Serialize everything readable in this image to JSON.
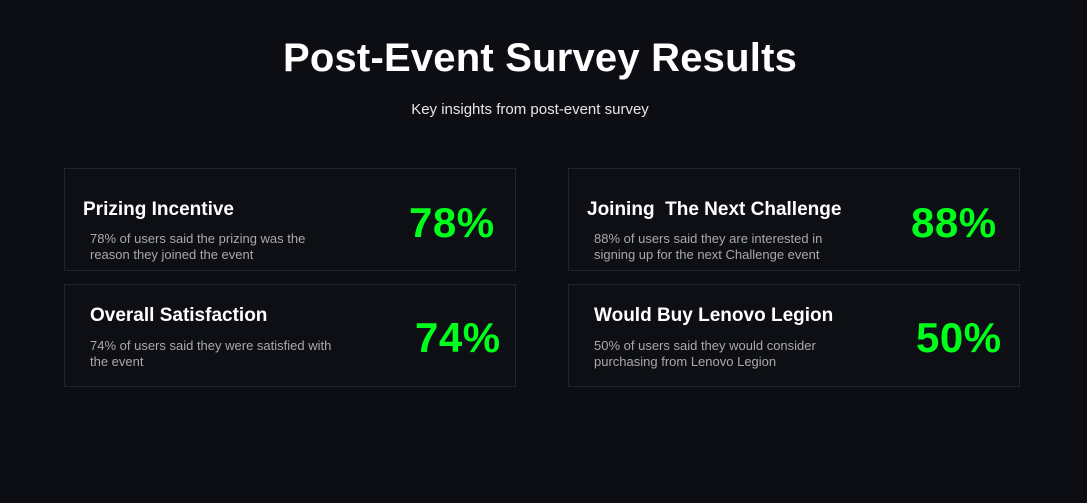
{
  "header": {
    "title": "Post-Event Survey Results",
    "subtitle": "Key insights from post-event survey"
  },
  "accent_color": "#00ff1a",
  "cards": [
    {
      "title": "Prizing Incentive",
      "description": "78% of users said the prizing was the reason they joined the event",
      "percent": "78%"
    },
    {
      "title": "Joining  The Next Challenge",
      "description": "88% of users said they are interested in signing up for the next Challenge event",
      "percent": "88%"
    },
    {
      "title": "Overall Satisfaction",
      "description": "74% of users said they were satisfied with the event",
      "percent": "74%"
    },
    {
      "title": "Would Buy Lenovo Legion",
      "description": "50% of users said they would consider purchasing from Lenovo Legion",
      "percent": "50%"
    }
  ]
}
